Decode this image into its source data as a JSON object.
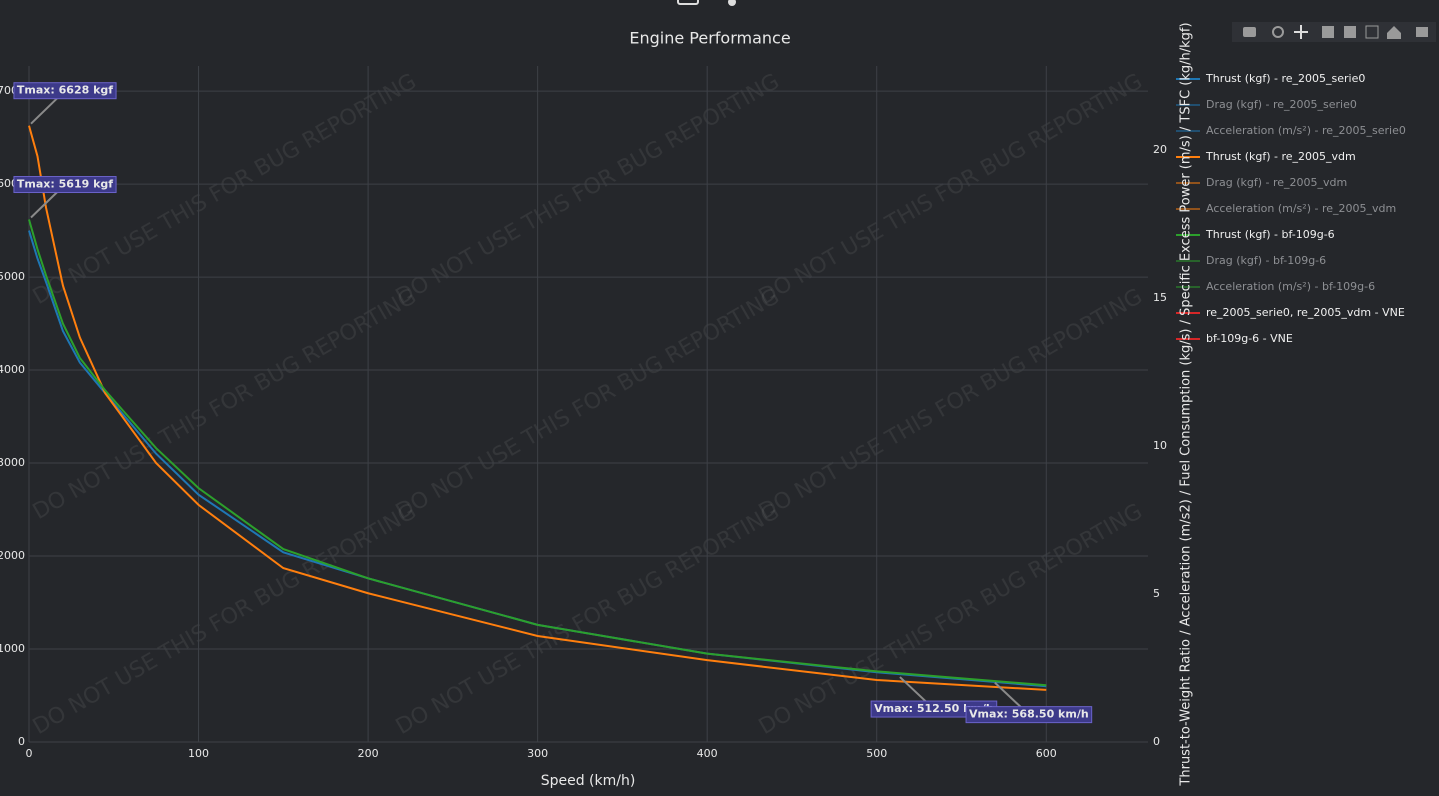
{
  "chart_data": {
    "type": "line",
    "title": "Engine Performance",
    "x_label": "Speed (km/h)",
    "y2_label": "Thrust-to-Weight Ratio / Acceleration (m/s2) / Fuel Consumption (kg/s) / Specific Excess Power (m/s) / TSFC (kg/h/kgf)",
    "watermark": "DO NOT USE THIS FOR BUG REPORTING",
    "x": [
      0,
      5,
      10,
      20,
      30,
      45,
      75,
      100,
      150,
      200,
      300,
      400,
      500,
      600
    ],
    "series": [
      {
        "name": "Thrust (kgf) - re_2005_serie0",
        "color": "#1f77b4",
        "values": [
          5500,
          5200,
          4950,
          4420,
          4080,
          3750,
          3100,
          2660,
          2040,
          1760,
          1260,
          950,
          750,
          600
        ]
      },
      {
        "name": "Thrust (kgf) - re_2005_vdm",
        "color": "#ff7f0e",
        "values": [
          6628,
          6300,
          5750,
          4910,
          4350,
          3750,
          3000,
          2550,
          1870,
          1600,
          1140,
          880,
          667,
          560
        ]
      },
      {
        "name": "Thrust (kgf) - bf-109g-6",
        "color": "#2ca02c",
        "values": [
          5619,
          5300,
          5020,
          4500,
          4130,
          3780,
          3160,
          2730,
          2075,
          1760,
          1260,
          950,
          760,
          610
        ]
      }
    ],
    "legend": [
      {
        "name": "Thrust (kgf) - re_2005_serie0",
        "color": "#1f77b4",
        "hidden": false
      },
      {
        "name": "Drag (kgf) - re_2005_serie0",
        "color": "#1f77b4",
        "hidden": true
      },
      {
        "name": "Acceleration (m/s²) - re_2005_serie0",
        "color": "#1f77b4",
        "hidden": true
      },
      {
        "name": "Thrust (kgf) - re_2005_vdm",
        "color": "#ff7f0e",
        "hidden": false
      },
      {
        "name": "Drag (kgf) - re_2005_vdm",
        "color": "#ff7f0e",
        "hidden": true
      },
      {
        "name": "Acceleration (m/s²) - re_2005_vdm",
        "color": "#ff7f0e",
        "hidden": true
      },
      {
        "name": "Thrust (kgf) - bf-109g-6",
        "color": "#2ca02c",
        "hidden": false
      },
      {
        "name": "Drag (kgf) - bf-109g-6",
        "color": "#2ca02c",
        "hidden": true
      },
      {
        "name": "Acceleration (m/s²) - bf-109g-6",
        "color": "#2ca02c",
        "hidden": true
      },
      {
        "name": "re_2005_serie0, re_2005_vdm - VNE",
        "color": "#d62728",
        "hidden": false
      },
      {
        "name": "bf-109g-6 - VNE",
        "color": "#d62728",
        "hidden": false
      }
    ],
    "annotations": [
      {
        "text": "Tmax: 6628 kgf",
        "x": 0,
        "y": 6628
      },
      {
        "text": "Tmax: 5619 kgf",
        "x": 0,
        "y": 5619
      },
      {
        "text": "Vmax: 512.50 km/h",
        "x": 512.5,
        "y": 720
      },
      {
        "text": "Vmax: 568.50 km/h",
        "x": 568.5,
        "y": 660
      }
    ],
    "xlim": [
      0,
      660
    ],
    "xticks": [
      0,
      100,
      200,
      300,
      400,
      500,
      600
    ],
    "ylim": [
      0,
      7270
    ],
    "yticks": [
      0,
      1000,
      2000,
      3000,
      4000,
      5000,
      6000,
      7000
    ],
    "y2lim": [
      0,
      22.84
    ],
    "y2ticks": [
      0,
      5,
      10,
      15,
      20
    ],
    "grid": true
  }
}
